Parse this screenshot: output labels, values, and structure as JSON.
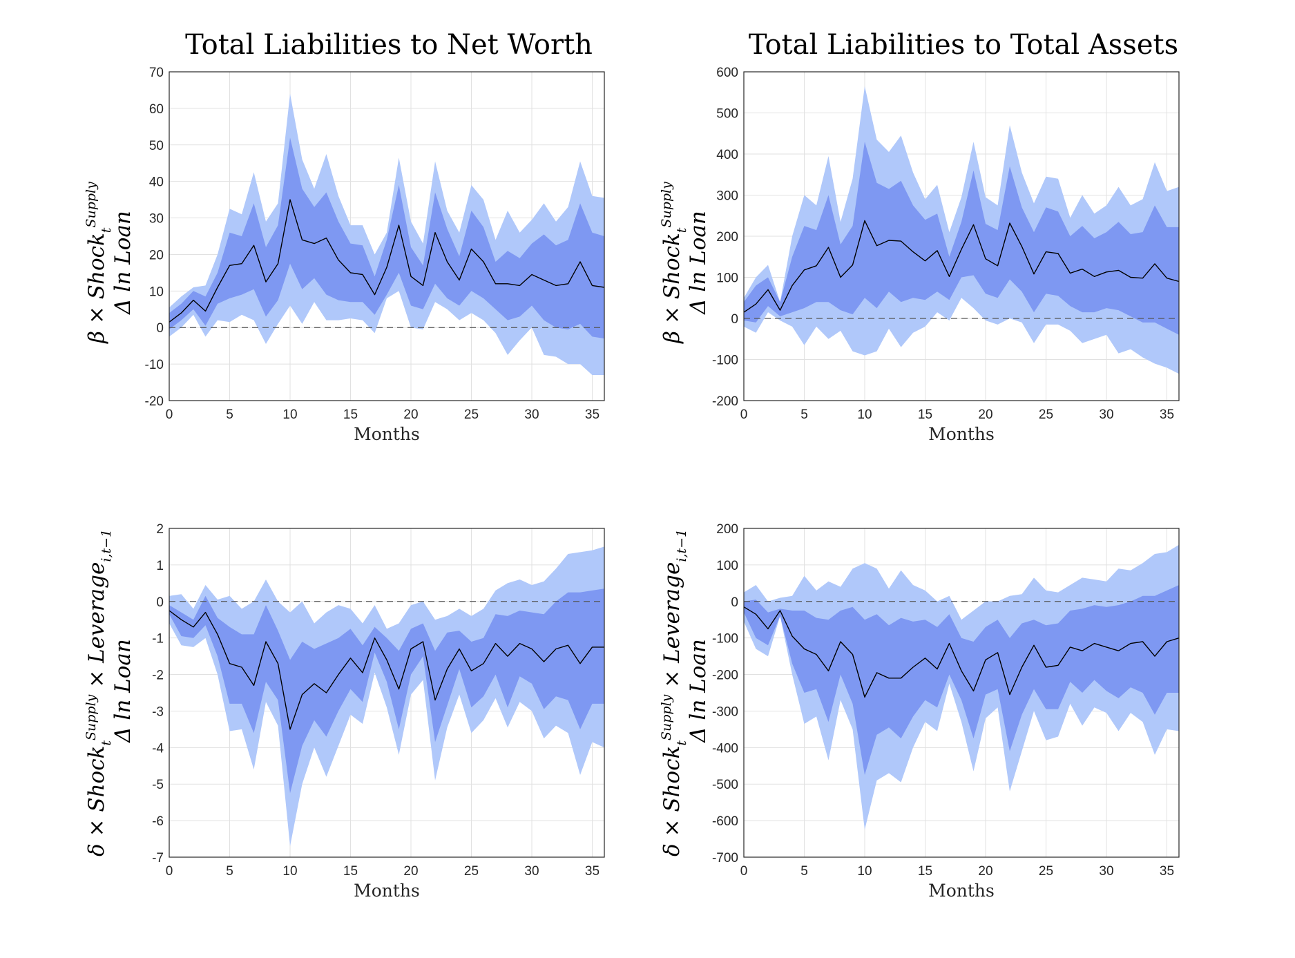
{
  "figure_titles": [
    "Total Liabilities to Net Worth",
    "Total Liabilities to Total Assets"
  ],
  "row_labels": [
    {
      "top_parts": [
        "β × Shock",
        "t",
        "Supply"
      ],
      "bottom": "Δ ln Loan"
    },
    {
      "top_parts": [
        "δ × Shock",
        "t",
        "Supply",
        " × Leverage",
        "i,t−1"
      ],
      "bottom": "Δ ln Loan"
    }
  ],
  "colors": {
    "outer_band": "#b0c8fa",
    "inner_band": "#7e98f2",
    "line": "#000000"
  },
  "chart_data": [
    {
      "type": "area",
      "title": "Total Liabilities to Net Worth",
      "xlabel": "Months",
      "ylabel": "β × Shock_t^Supply Δ ln Loan",
      "xlim": [
        0,
        36
      ],
      "ylim": [
        -20,
        70
      ],
      "xticks": [
        "0",
        "5",
        "10",
        "15",
        "20",
        "25",
        "30",
        "35"
      ],
      "yticks": [
        "-20",
        "-10",
        "0",
        "10",
        "20",
        "30",
        "40",
        "50",
        "60",
        "70"
      ],
      "grid": true,
      "x": [
        0,
        1,
        2,
        3,
        4,
        5,
        6,
        7,
        8,
        9,
        10,
        11,
        12,
        13,
        14,
        15,
        16,
        17,
        18,
        19,
        20,
        21,
        22,
        23,
        24,
        25,
        26,
        27,
        28,
        29,
        30,
        31,
        32,
        33,
        34,
        35,
        36
      ],
      "series": [
        {
          "name": "estimate",
          "values": [
            1.5,
            4,
            7.5,
            4.5,
            11,
            17,
            17.5,
            22.5,
            12.5,
            17.5,
            35,
            24,
            23,
            24.5,
            18.5,
            15,
            14.5,
            9,
            16.5,
            28,
            14,
            11.5,
            26,
            18,
            13,
            21.5,
            18,
            12,
            12,
            11.5,
            14.5,
            13,
            11.5,
            12,
            18,
            11.5,
            11
          ]
        },
        {
          "name": "inner_upper",
          "values": [
            4,
            6.5,
            10,
            8.5,
            15,
            26,
            25,
            34,
            22,
            28,
            52,
            38,
            33,
            37,
            29,
            23,
            22.5,
            14,
            24,
            39,
            22,
            17,
            37,
            27,
            19.5,
            32,
            27.5,
            18,
            21,
            19,
            23,
            25.5,
            22.5,
            24,
            34,
            26,
            25
          ]
        },
        {
          "name": "inner_lower",
          "values": [
            -0.5,
            2,
            5,
            0.5,
            6.5,
            8,
            9,
            10.5,
            3,
            7.5,
            17.5,
            10.5,
            13.5,
            9,
            7.5,
            7,
            7,
            3.5,
            9,
            15,
            6,
            5,
            12,
            8,
            6,
            10,
            8,
            5,
            2,
            3,
            6,
            2,
            0,
            -0.5,
            1,
            -2.5,
            -3
          ]
        },
        {
          "name": "outer_upper",
          "values": [
            5.5,
            8.5,
            11,
            11.5,
            20,
            32.5,
            31,
            42.5,
            29,
            34,
            64,
            46,
            38,
            47.5,
            36,
            28,
            28,
            20,
            26,
            46.5,
            29,
            23,
            45.5,
            32,
            26,
            39,
            35,
            24,
            32,
            26,
            29.5,
            34,
            29,
            33,
            45.5,
            36,
            35.5
          ]
        },
        {
          "name": "outer_lower",
          "values": [
            -2.5,
            0,
            3.5,
            -2.5,
            2,
            1.5,
            3.5,
            2,
            -4.5,
            1,
            6,
            1,
            7,
            2,
            2,
            2.5,
            2,
            -1.5,
            8,
            10,
            0,
            -0.5,
            7,
            5,
            2,
            4,
            2,
            -1.5,
            -7.5,
            -3.5,
            0,
            -7.5,
            -8,
            -10,
            -10,
            -13,
            -13
          ]
        }
      ]
    },
    {
      "type": "area",
      "title": "Total Liabilities to Total Assets",
      "xlabel": "Months",
      "ylabel": "β × Shock_t^Supply Δ ln Loan",
      "xlim": [
        0,
        36
      ],
      "ylim": [
        -200,
        600
      ],
      "xticks": [
        "0",
        "5",
        "10",
        "15",
        "20",
        "25",
        "30",
        "35"
      ],
      "yticks": [
        "-200",
        "-100",
        "0",
        "100",
        "200",
        "300",
        "400",
        "500",
        "600"
      ],
      "grid": true,
      "x": [
        0,
        1,
        2,
        3,
        4,
        5,
        6,
        7,
        8,
        9,
        10,
        11,
        12,
        13,
        14,
        15,
        16,
        17,
        18,
        19,
        20,
        21,
        22,
        23,
        24,
        25,
        26,
        27,
        28,
        29,
        30,
        31,
        32,
        33,
        34,
        35,
        36
      ],
      "series": [
        {
          "name": "estimate",
          "values": [
            15,
            35,
            70,
            20,
            80,
            118,
            128,
            173,
            100,
            130,
            238,
            177,
            190,
            188,
            162,
            140,
            165,
            102,
            168,
            228,
            145,
            128,
            232,
            175,
            108,
            162,
            158,
            110,
            120,
            102,
            113,
            117,
            100,
            98,
            133,
            98,
            90
          ]
        },
        {
          "name": "inner_upper",
          "values": [
            40,
            80,
            100,
            40,
            150,
            225,
            215,
            300,
            180,
            225,
            430,
            330,
            315,
            335,
            275,
            240,
            255,
            150,
            235,
            360,
            230,
            215,
            370,
            270,
            210,
            270,
            260,
            200,
            225,
            195,
            210,
            235,
            205,
            210,
            275,
            222,
            222
          ]
        },
        {
          "name": "inner_lower",
          "values": [
            -5,
            -10,
            30,
            5,
            15,
            25,
            40,
            40,
            20,
            10,
            50,
            25,
            65,
            40,
            50,
            45,
            65,
            45,
            100,
            105,
            60,
            50,
            95,
            65,
            15,
            60,
            55,
            30,
            15,
            15,
            25,
            20,
            5,
            -10,
            -10,
            -25,
            -40
          ]
        },
        {
          "name": "outer_upper",
          "values": [
            50,
            100,
            130,
            40,
            200,
            300,
            275,
            395,
            235,
            340,
            565,
            435,
            405,
            445,
            355,
            290,
            325,
            210,
            295,
            430,
            295,
            275,
            470,
            355,
            280,
            345,
            340,
            245,
            300,
            255,
            275,
            320,
            275,
            290,
            380,
            310,
            320
          ]
        },
        {
          "name": "outer_lower",
          "values": [
            -20,
            -35,
            15,
            -5,
            -20,
            -65,
            -20,
            -50,
            -30,
            -80,
            -90,
            -80,
            -25,
            -70,
            -35,
            -20,
            15,
            -5,
            50,
            25,
            -5,
            -15,
            0,
            -10,
            -60,
            -15,
            -15,
            -30,
            -60,
            -50,
            -40,
            -85,
            -75,
            -95,
            -110,
            -120,
            -135
          ]
        }
      ]
    },
    {
      "type": "area",
      "title": "",
      "xlabel": "Months",
      "ylabel": "δ × Shock_t^Supply × Leverage_{i,t−1} Δ ln Loan",
      "xlim": [
        0,
        36
      ],
      "ylim": [
        -7,
        2
      ],
      "xticks": [
        "0",
        "5",
        "10",
        "15",
        "20",
        "25",
        "30",
        "35"
      ],
      "yticks": [
        "-7",
        "-6",
        "-5",
        "-4",
        "-3",
        "-2",
        "-1",
        "0",
        "1",
        "2"
      ],
      "grid": true,
      "x": [
        0,
        1,
        2,
        3,
        4,
        5,
        6,
        7,
        8,
        9,
        10,
        11,
        12,
        13,
        14,
        15,
        16,
        17,
        18,
        19,
        20,
        21,
        22,
        23,
        24,
        25,
        26,
        27,
        28,
        29,
        30,
        31,
        32,
        33,
        34,
        35,
        36
      ],
      "series": [
        {
          "name": "estimate",
          "values": [
            -0.25,
            -0.5,
            -0.7,
            -0.3,
            -0.9,
            -1.7,
            -1.8,
            -2.3,
            -1.1,
            -1.7,
            -3.5,
            -2.55,
            -2.25,
            -2.5,
            -2.0,
            -1.55,
            -1.95,
            -1.0,
            -1.6,
            -2.4,
            -1.3,
            -1.1,
            -2.7,
            -1.85,
            -1.3,
            -1.9,
            -1.7,
            -1.15,
            -1.5,
            -1.15,
            -1.3,
            -1.65,
            -1.3,
            -1.2,
            -1.7,
            -1.25,
            -1.25
          ]
        },
        {
          "name": "inner_upper",
          "values": [
            -0.1,
            -0.3,
            -0.5,
            0.15,
            -0.45,
            -0.7,
            -0.9,
            -0.9,
            -0.1,
            -0.8,
            -1.6,
            -1.1,
            -1.3,
            -1.15,
            -1.0,
            -0.75,
            -1.2,
            -0.7,
            -1.0,
            -1.35,
            -0.75,
            -0.6,
            -1.35,
            -0.85,
            -0.8,
            -1.1,
            -1.0,
            -0.35,
            -0.4,
            -0.25,
            -0.3,
            -0.35,
            0.0,
            0.25,
            0.25,
            0.3,
            0.35
          ]
        },
        {
          "name": "inner_lower",
          "values": [
            -0.35,
            -0.95,
            -1.0,
            -0.65,
            -1.5,
            -2.8,
            -2.8,
            -3.6,
            -2.2,
            -2.7,
            -5.25,
            -3.95,
            -3.25,
            -3.7,
            -3.0,
            -2.4,
            -2.75,
            -1.4,
            -2.2,
            -3.5,
            -2.0,
            -1.5,
            -3.85,
            -2.85,
            -1.85,
            -2.9,
            -2.6,
            -2.0,
            -2.9,
            -2.05,
            -2.25,
            -2.95,
            -2.6,
            -2.7,
            -3.5,
            -2.8,
            -2.8
          ]
        },
        {
          "name": "outer_upper",
          "values": [
            0.15,
            0.2,
            -0.2,
            0.45,
            0.05,
            0.15,
            -0.2,
            0.0,
            0.6,
            0.0,
            -0.3,
            0.0,
            -0.6,
            -0.3,
            -0.1,
            -0.2,
            -0.6,
            -0.1,
            -0.75,
            -0.6,
            -0.1,
            0.0,
            -0.5,
            -0.4,
            -0.2,
            -0.4,
            -0.2,
            0.3,
            0.5,
            0.6,
            0.45,
            0.55,
            0.9,
            1.3,
            1.35,
            1.4,
            1.5
          ]
        },
        {
          "name": "outer_lower",
          "values": [
            -0.6,
            -1.2,
            -1.25,
            -1.0,
            -2.0,
            -3.55,
            -3.5,
            -4.6,
            -2.75,
            -3.4,
            -6.7,
            -5.0,
            -4.0,
            -4.8,
            -3.95,
            -3.1,
            -3.35,
            -1.95,
            -2.9,
            -4.2,
            -2.55,
            -2.15,
            -4.9,
            -3.45,
            -2.55,
            -3.6,
            -3.25,
            -2.65,
            -3.45,
            -2.75,
            -3.0,
            -3.75,
            -3.4,
            -3.6,
            -4.75,
            -3.85,
            -4.0
          ]
        }
      ]
    },
    {
      "type": "area",
      "title": "",
      "xlabel": "Months",
      "ylabel": "δ × Shock_t^Supply × Leverage_{i,t−1} Δ ln Loan",
      "xlim": [
        0,
        36
      ],
      "ylim": [
        -700,
        200
      ],
      "xticks": [
        "0",
        "5",
        "10",
        "15",
        "20",
        "25",
        "30",
        "35"
      ],
      "yticks": [
        "-700",
        "-600",
        "-500",
        "-400",
        "-300",
        "-200",
        "-100",
        "0",
        "100",
        "200"
      ],
      "grid": true,
      "x": [
        0,
        1,
        2,
        3,
        4,
        5,
        6,
        7,
        8,
        9,
        10,
        11,
        12,
        13,
        14,
        15,
        16,
        17,
        18,
        19,
        20,
        21,
        22,
        23,
        24,
        25,
        26,
        27,
        28,
        29,
        30,
        31,
        32,
        33,
        34,
        35,
        36
      ],
      "series": [
        {
          "name": "estimate",
          "values": [
            -15,
            -35,
            -75,
            -25,
            -95,
            -130,
            -145,
            -190,
            -110,
            -145,
            -262,
            -195,
            -210,
            -210,
            -180,
            -155,
            -185,
            -115,
            -190,
            -245,
            -160,
            -140,
            -255,
            -180,
            -120,
            -180,
            -175,
            -125,
            -135,
            -115,
            -125,
            -135,
            -115,
            -110,
            -150,
            -110,
            -100
          ]
        },
        {
          "name": "inner_upper",
          "values": [
            0,
            5,
            -30,
            -20,
            -25,
            -25,
            -45,
            -50,
            -25,
            -15,
            -50,
            -35,
            -65,
            -45,
            -55,
            -50,
            -70,
            -35,
            -100,
            -110,
            -70,
            -50,
            -100,
            -60,
            -50,
            -65,
            -60,
            -25,
            -20,
            -10,
            -15,
            -10,
            0,
            15,
            15,
            30,
            45
          ]
        },
        {
          "name": "inner_lower",
          "values": [
            -30,
            -100,
            -120,
            -40,
            -170,
            -250,
            -240,
            -330,
            -200,
            -280,
            -475,
            -365,
            -345,
            -375,
            -315,
            -270,
            -290,
            -200,
            -270,
            -375,
            -255,
            -240,
            -410,
            -310,
            -240,
            -295,
            -295,
            -220,
            -250,
            -215,
            -245,
            -265,
            -235,
            -250,
            -310,
            -250,
            -250
          ]
        },
        {
          "name": "outer_upper",
          "values": [
            25,
            45,
            0,
            10,
            15,
            70,
            30,
            55,
            40,
            90,
            105,
            90,
            35,
            85,
            45,
            30,
            0,
            15,
            -50,
            -25,
            0,
            0,
            15,
            20,
            65,
            30,
            25,
            45,
            65,
            60,
            55,
            90,
            85,
            105,
            130,
            135,
            155
          ]
        },
        {
          "name": "outer_lower",
          "values": [
            -55,
            -130,
            -150,
            -40,
            -200,
            -335,
            -315,
            -435,
            -270,
            -350,
            -625,
            -490,
            -470,
            -495,
            -400,
            -330,
            -355,
            -225,
            -330,
            -465,
            -320,
            -290,
            -520,
            -410,
            -300,
            -380,
            -370,
            -280,
            -340,
            -290,
            -305,
            -355,
            -305,
            -330,
            -420,
            -350,
            -355
          ]
        }
      ]
    }
  ]
}
